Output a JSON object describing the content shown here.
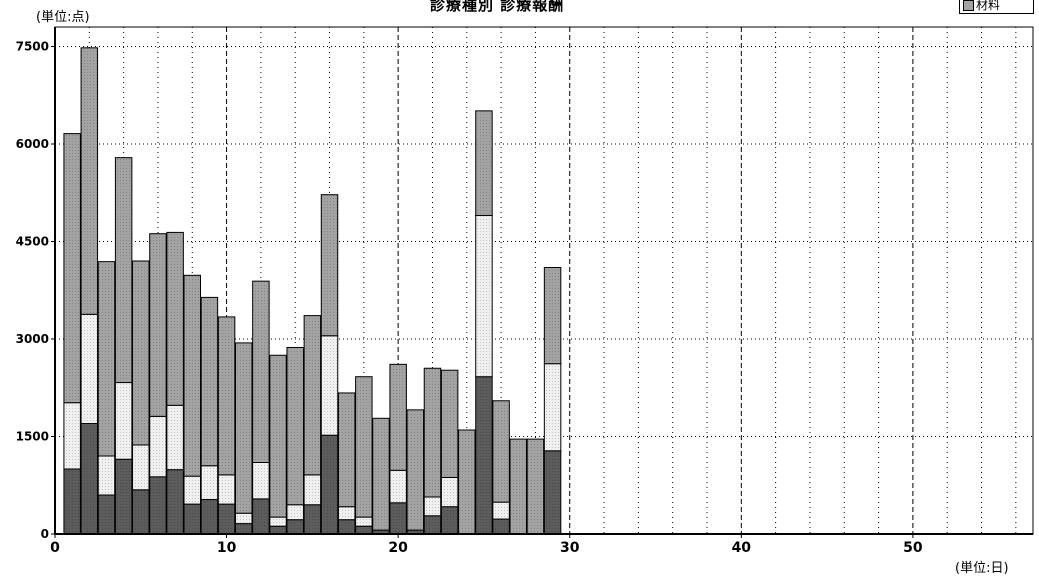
{
  "chart_data": {
    "type": "bar",
    "stacked": true,
    "title": "診療種別 診療報酬",
    "y_unit": "(単位:点)",
    "x_unit": "(単位:日)",
    "x": [
      1,
      2,
      3,
      4,
      5,
      6,
      7,
      8,
      9,
      10,
      11,
      12,
      13,
      14,
      15,
      16,
      17,
      18,
      19,
      20,
      21,
      22,
      23,
      24,
      25,
      26,
      27,
      28,
      29
    ],
    "series": [
      {
        "values": [
          1000,
          1700,
          600,
          1150,
          680,
          880,
          990,
          460,
          530,
          460,
          160,
          540,
          120,
          220,
          450,
          1520,
          220,
          120,
          60,
          480,
          60,
          280,
          420,
          0,
          2420,
          230,
          0,
          0,
          1280
        ]
      },
      {
        "values": [
          1020,
          1680,
          600,
          1180,
          690,
          930,
          990,
          430,
          520,
          450,
          160,
          560,
          140,
          230,
          460,
          1530,
          200,
          140,
          0,
          500,
          0,
          290,
          450,
          0,
          2480,
          260,
          0,
          0,
          1340
        ]
      },
      {
        "values": [
          4140,
          4100,
          2990,
          3460,
          2830,
          2810,
          2660,
          3090,
          2590,
          2430,
          2620,
          2790,
          2490,
          2420,
          2450,
          2170,
          1750,
          2160,
          1720,
          1630,
          1850,
          1980,
          1650,
          1600,
          1610,
          1560,
          1460,
          1460,
          1480
        ]
      }
    ],
    "colors": [
      "#5c5c5c",
      "#f0f0f0",
      "#a3a3a3"
    ],
    "ylim": [
      0,
      7800
    ],
    "xlim": [
      0,
      57
    ],
    "y_ticks": [
      0,
      1500,
      3000,
      4500,
      6000,
      7500
    ],
    "x_ticks": [
      0,
      10,
      20,
      30,
      40,
      50
    ],
    "x_minor_ticks": [
      2,
      4,
      6,
      8,
      12,
      14,
      16,
      18,
      22,
      24,
      26,
      28,
      32,
      34,
      36,
      38,
      42,
      44,
      46,
      48,
      52,
      54,
      56
    ],
    "grid": true,
    "legend": {
      "label": "材料",
      "color": "#a3a3a3"
    }
  }
}
